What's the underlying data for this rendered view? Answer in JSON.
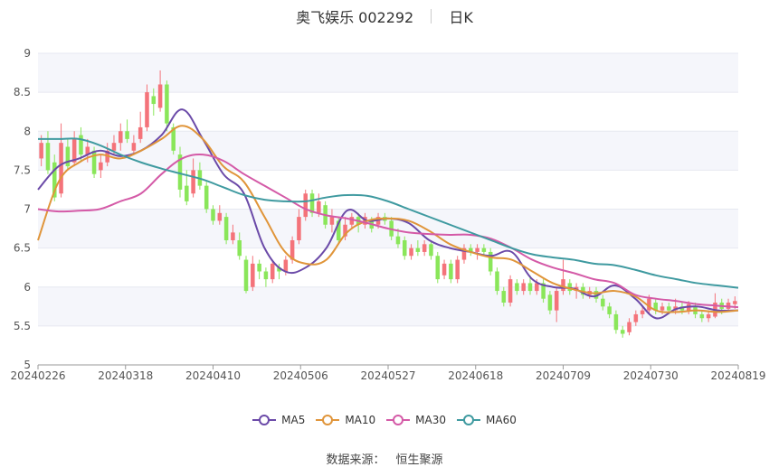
{
  "header": {
    "title": "奥飞娱乐 002292",
    "period": "日K"
  },
  "source": {
    "label": "数据来源：",
    "value": "恒生聚源"
  },
  "colors": {
    "up": "#f4737a",
    "down": "#8ae65a",
    "ma5": "#6b4aa8",
    "ma10": "#e0953a",
    "ma30": "#d45aa7",
    "ma60": "#3f9aa0",
    "grid": "#e6e8f0",
    "band": "#f5f6fb"
  },
  "chart_data": {
    "type": "candlestick",
    "ylim": [
      5,
      9
    ],
    "yticks": [
      "5",
      "5.5",
      "6",
      "6.5",
      "7",
      "7.5",
      "8",
      "8.5",
      "9"
    ],
    "x_tick_labels": [
      "20240226",
      "20240318",
      "20240410",
      "20240506",
      "20240527",
      "20240618",
      "20240709",
      "20240730",
      "20240819"
    ],
    "legend": [
      "MA5",
      "MA10",
      "MA30",
      "MA60"
    ],
    "ma_series": [
      {
        "name": "MA5",
        "values": [
          7.25,
          7.55,
          7.65,
          7.75,
          7.68,
          7.75,
          7.95,
          8.28,
          7.9,
          7.45,
          7.2,
          6.5,
          6.2,
          6.25,
          6.5,
          6.98,
          6.85,
          6.88,
          6.82,
          6.6,
          6.5,
          6.45,
          6.4,
          6.45,
          6.1,
          6.0,
          5.98,
          5.88,
          6.02,
          5.85,
          5.6,
          5.72,
          5.75,
          5.7,
          5.7
        ]
      },
      {
        "name": "MA10",
        "values": [
          6.6,
          7.35,
          7.6,
          7.7,
          7.65,
          7.75,
          7.9,
          8.07,
          7.9,
          7.55,
          7.35,
          6.9,
          6.45,
          6.3,
          6.35,
          6.7,
          6.85,
          6.88,
          6.85,
          6.72,
          6.55,
          6.45,
          6.38,
          6.35,
          6.2,
          6.05,
          5.97,
          5.92,
          5.95,
          5.88,
          5.7,
          5.68,
          5.7,
          5.68,
          5.7
        ]
      },
      {
        "name": "MA30",
        "values": [
          7.0,
          6.97,
          6.98,
          7.0,
          7.1,
          7.2,
          7.45,
          7.65,
          7.7,
          7.62,
          7.45,
          7.3,
          7.15,
          7.0,
          6.92,
          6.88,
          6.82,
          6.75,
          6.7,
          6.68,
          6.67,
          6.67,
          6.62,
          6.5,
          6.35,
          6.25,
          6.18,
          6.1,
          6.05,
          5.9,
          5.85,
          5.82,
          5.78,
          5.76,
          5.74
        ]
      },
      {
        "name": "MA60",
        "values": [
          7.9,
          7.9,
          7.9,
          7.82,
          7.7,
          7.6,
          7.52,
          7.45,
          7.38,
          7.28,
          7.18,
          7.12,
          7.1,
          7.1,
          7.15,
          7.18,
          7.17,
          7.1,
          7.0,
          6.9,
          6.8,
          6.7,
          6.6,
          6.5,
          6.42,
          6.38,
          6.35,
          6.3,
          6.28,
          6.22,
          6.15,
          6.1,
          6.05,
          6.02,
          5.99
        ]
      }
    ],
    "candles": [
      {
        "o": 7.65,
        "c": 7.85,
        "h": 7.95,
        "l": 7.55
      },
      {
        "o": 7.85,
        "c": 7.5,
        "h": 8.0,
        "l": 7.45
      },
      {
        "o": 7.6,
        "c": 7.15,
        "h": 7.7,
        "l": 7.1
      },
      {
        "o": 7.2,
        "c": 7.85,
        "h": 8.1,
        "l": 7.15
      },
      {
        "o": 7.8,
        "c": 7.55,
        "h": 7.9,
        "l": 7.5
      },
      {
        "o": 7.6,
        "c": 7.9,
        "h": 8.0,
        "l": 7.55
      },
      {
        "o": 7.95,
        "c": 7.7,
        "h": 8.05,
        "l": 7.6
      },
      {
        "o": 7.7,
        "c": 7.8,
        "h": 7.9,
        "l": 7.6
      },
      {
        "o": 7.75,
        "c": 7.45,
        "h": 7.8,
        "l": 7.4
      },
      {
        "o": 7.5,
        "c": 7.6,
        "h": 7.7,
        "l": 7.4
      },
      {
        "o": 7.6,
        "c": 7.75,
        "h": 7.85,
        "l": 7.55
      },
      {
        "o": 7.75,
        "c": 7.85,
        "h": 7.95,
        "l": 7.7
      },
      {
        "o": 7.85,
        "c": 8.0,
        "h": 8.1,
        "l": 7.75
      },
      {
        "o": 8.0,
        "c": 7.9,
        "h": 8.15,
        "l": 7.85
      },
      {
        "o": 7.75,
        "c": 7.85,
        "h": 7.95,
        "l": 7.7
      },
      {
        "o": 7.9,
        "c": 8.05,
        "h": 8.25,
        "l": 7.85
      },
      {
        "o": 8.05,
        "c": 8.5,
        "h": 8.6,
        "l": 8.0
      },
      {
        "o": 8.45,
        "c": 8.35,
        "h": 8.55,
        "l": 8.2
      },
      {
        "o": 8.3,
        "c": 8.6,
        "h": 8.78,
        "l": 8.25
      },
      {
        "o": 8.6,
        "c": 8.1,
        "h": 8.65,
        "l": 8.0
      },
      {
        "o": 8.05,
        "c": 7.75,
        "h": 8.1,
        "l": 7.7
      },
      {
        "o": 7.7,
        "c": 7.25,
        "h": 7.8,
        "l": 7.15
      },
      {
        "o": 7.3,
        "c": 7.1,
        "h": 7.5,
        "l": 7.05
      },
      {
        "o": 7.2,
        "c": 7.5,
        "h": 7.65,
        "l": 7.15
      },
      {
        "o": 7.5,
        "c": 7.3,
        "h": 7.6,
        "l": 7.25
      },
      {
        "o": 7.3,
        "c": 7.0,
        "h": 7.35,
        "l": 6.95
      },
      {
        "o": 7.0,
        "c": 6.85,
        "h": 7.05,
        "l": 6.8
      },
      {
        "o": 6.85,
        "c": 6.95,
        "h": 7.05,
        "l": 6.8
      },
      {
        "o": 6.9,
        "c": 6.6,
        "h": 6.95,
        "l": 6.55
      },
      {
        "o": 6.6,
        "c": 6.7,
        "h": 6.8,
        "l": 6.55
      },
      {
        "o": 6.6,
        "c": 6.4,
        "h": 6.7,
        "l": 6.35
      },
      {
        "o": 6.35,
        "c": 5.95,
        "h": 6.4,
        "l": 5.92
      },
      {
        "o": 6.0,
        "c": 6.3,
        "h": 6.4,
        "l": 5.95
      },
      {
        "o": 6.3,
        "c": 6.2,
        "h": 6.35,
        "l": 6.1
      },
      {
        "o": 6.2,
        "c": 6.1,
        "h": 6.25,
        "l": 6.0
      },
      {
        "o": 6.1,
        "c": 6.3,
        "h": 6.35,
        "l": 6.05
      },
      {
        "o": 6.25,
        "c": 6.2,
        "h": 6.3,
        "l": 6.1
      },
      {
        "o": 6.2,
        "c": 6.35,
        "h": 6.4,
        "l": 6.15
      },
      {
        "o": 6.35,
        "c": 6.6,
        "h": 6.65,
        "l": 6.3
      },
      {
        "o": 6.6,
        "c": 6.9,
        "h": 7.0,
        "l": 6.55
      },
      {
        "o": 6.9,
        "c": 7.2,
        "h": 7.25,
        "l": 6.85
      },
      {
        "o": 7.2,
        "c": 6.95,
        "h": 7.25,
        "l": 6.9
      },
      {
        "o": 6.95,
        "c": 7.1,
        "h": 7.2,
        "l": 6.9
      },
      {
        "o": 7.05,
        "c": 6.8,
        "h": 7.1,
        "l": 6.75
      },
      {
        "o": 6.8,
        "c": 6.9,
        "h": 7.0,
        "l": 6.7
      },
      {
        "o": 6.85,
        "c": 6.6,
        "h": 6.9,
        "l": 6.55
      },
      {
        "o": 6.65,
        "c": 6.8,
        "h": 6.9,
        "l": 6.6
      },
      {
        "o": 6.8,
        "c": 6.9,
        "h": 6.95,
        "l": 6.75
      },
      {
        "o": 6.9,
        "c": 6.8,
        "h": 6.95,
        "l": 6.7
      },
      {
        "o": 6.8,
        "c": 6.9,
        "h": 6.95,
        "l": 6.75
      },
      {
        "o": 6.85,
        "c": 6.75,
        "h": 6.9,
        "l": 6.7
      },
      {
        "o": 6.8,
        "c": 6.9,
        "h": 6.95,
        "l": 6.75
      },
      {
        "o": 6.9,
        "c": 6.85,
        "h": 6.95,
        "l": 6.8
      },
      {
        "o": 6.85,
        "c": 6.65,
        "h": 6.9,
        "l": 6.6
      },
      {
        "o": 6.65,
        "c": 6.55,
        "h": 6.75,
        "l": 6.5
      },
      {
        "o": 6.6,
        "c": 6.4,
        "h": 6.65,
        "l": 6.35
      },
      {
        "o": 6.4,
        "c": 6.5,
        "h": 6.55,
        "l": 6.35
      },
      {
        "o": 6.5,
        "c": 6.45,
        "h": 6.6,
        "l": 6.4
      },
      {
        "o": 6.45,
        "c": 6.55,
        "h": 6.6,
        "l": 6.4
      },
      {
        "o": 6.55,
        "c": 6.4,
        "h": 6.6,
        "l": 6.35
      },
      {
        "o": 6.4,
        "c": 6.1,
        "h": 6.45,
        "l": 6.05
      },
      {
        "o": 6.15,
        "c": 6.3,
        "h": 6.35,
        "l": 6.1
      },
      {
        "o": 6.3,
        "c": 6.1,
        "h": 6.35,
        "l": 6.05
      },
      {
        "o": 6.1,
        "c": 6.35,
        "h": 6.4,
        "l": 6.05
      },
      {
        "o": 6.35,
        "c": 6.5,
        "h": 6.55,
        "l": 6.3
      },
      {
        "o": 6.5,
        "c": 6.45,
        "h": 6.55,
        "l": 6.4
      },
      {
        "o": 6.45,
        "c": 6.5,
        "h": 6.55,
        "l": 6.35
      },
      {
        "o": 6.5,
        "c": 6.45,
        "h": 6.55,
        "l": 6.4
      },
      {
        "o": 6.45,
        "c": 6.2,
        "h": 6.5,
        "l": 6.15
      },
      {
        "o": 6.2,
        "c": 5.95,
        "h": 6.25,
        "l": 5.9
      },
      {
        "o": 5.95,
        "c": 5.8,
        "h": 6.0,
        "l": 5.75
      },
      {
        "o": 5.8,
        "c": 6.1,
        "h": 6.15,
        "l": 5.75
      },
      {
        "o": 6.05,
        "c": 5.95,
        "h": 6.1,
        "l": 5.9
      },
      {
        "o": 5.95,
        "c": 6.05,
        "h": 6.1,
        "l": 5.9
      },
      {
        "o": 6.05,
        "c": 5.95,
        "h": 6.15,
        "l": 5.9
      },
      {
        "o": 5.95,
        "c": 6.05,
        "h": 6.1,
        "l": 5.9
      },
      {
        "o": 6.05,
        "c": 5.85,
        "h": 6.1,
        "l": 5.8
      },
      {
        "o": 5.9,
        "c": 5.7,
        "h": 5.95,
        "l": 5.65
      },
      {
        "o": 5.7,
        "c": 5.95,
        "h": 6.0,
        "l": 5.55
      },
      {
        "o": 5.95,
        "c": 6.1,
        "h": 6.35,
        "l": 5.9
      },
      {
        "o": 6.05,
        "c": 5.95,
        "h": 6.1,
        "l": 5.9
      },
      {
        "o": 5.95,
        "c": 6.0,
        "h": 6.05,
        "l": 5.85
      },
      {
        "o": 6.0,
        "c": 5.9,
        "h": 6.05,
        "l": 5.85
      },
      {
        "o": 5.9,
        "c": 5.95,
        "h": 6.0,
        "l": 5.85
      },
      {
        "o": 5.95,
        "c": 5.85,
        "h": 6.0,
        "l": 5.8
      },
      {
        "o": 5.85,
        "c": 5.75,
        "h": 5.9,
        "l": 5.7
      },
      {
        "o": 5.75,
        "c": 5.65,
        "h": 5.8,
        "l": 5.6
      },
      {
        "o": 5.65,
        "c": 5.45,
        "h": 5.7,
        "l": 5.4
      },
      {
        "o": 5.45,
        "c": 5.4,
        "h": 5.5,
        "l": 5.35
      },
      {
        "o": 5.42,
        "c": 5.55,
        "h": 5.6,
        "l": 5.38
      },
      {
        "o": 5.55,
        "c": 5.65,
        "h": 5.7,
        "l": 5.5
      },
      {
        "o": 5.65,
        "c": 5.7,
        "h": 5.75,
        "l": 5.6
      },
      {
        "o": 5.7,
        "c": 5.85,
        "h": 5.9,
        "l": 5.65
      },
      {
        "o": 5.8,
        "c": 5.7,
        "h": 5.85,
        "l": 5.65
      },
      {
        "o": 5.7,
        "c": 5.75,
        "h": 5.8,
        "l": 5.65
      },
      {
        "o": 5.75,
        "c": 5.7,
        "h": 5.8,
        "l": 5.65
      },
      {
        "o": 5.7,
        "c": 5.75,
        "h": 5.85,
        "l": 5.65
      },
      {
        "o": 5.75,
        "c": 5.7,
        "h": 5.8,
        "l": 5.65
      },
      {
        "o": 5.7,
        "c": 5.78,
        "h": 5.82,
        "l": 5.65
      },
      {
        "o": 5.75,
        "c": 5.65,
        "h": 5.8,
        "l": 5.6
      },
      {
        "o": 5.65,
        "c": 5.6,
        "h": 5.7,
        "l": 5.55
      },
      {
        "o": 5.6,
        "c": 5.65,
        "h": 5.7,
        "l": 5.55
      },
      {
        "o": 5.62,
        "c": 5.8,
        "h": 5.92,
        "l": 5.6
      },
      {
        "o": 5.8,
        "c": 5.72,
        "h": 5.85,
        "l": 5.65
      },
      {
        "o": 5.72,
        "c": 5.8,
        "h": 5.85,
        "l": 5.68
      },
      {
        "o": 5.78,
        "c": 5.82,
        "h": 5.88,
        "l": 5.72
      }
    ]
  }
}
